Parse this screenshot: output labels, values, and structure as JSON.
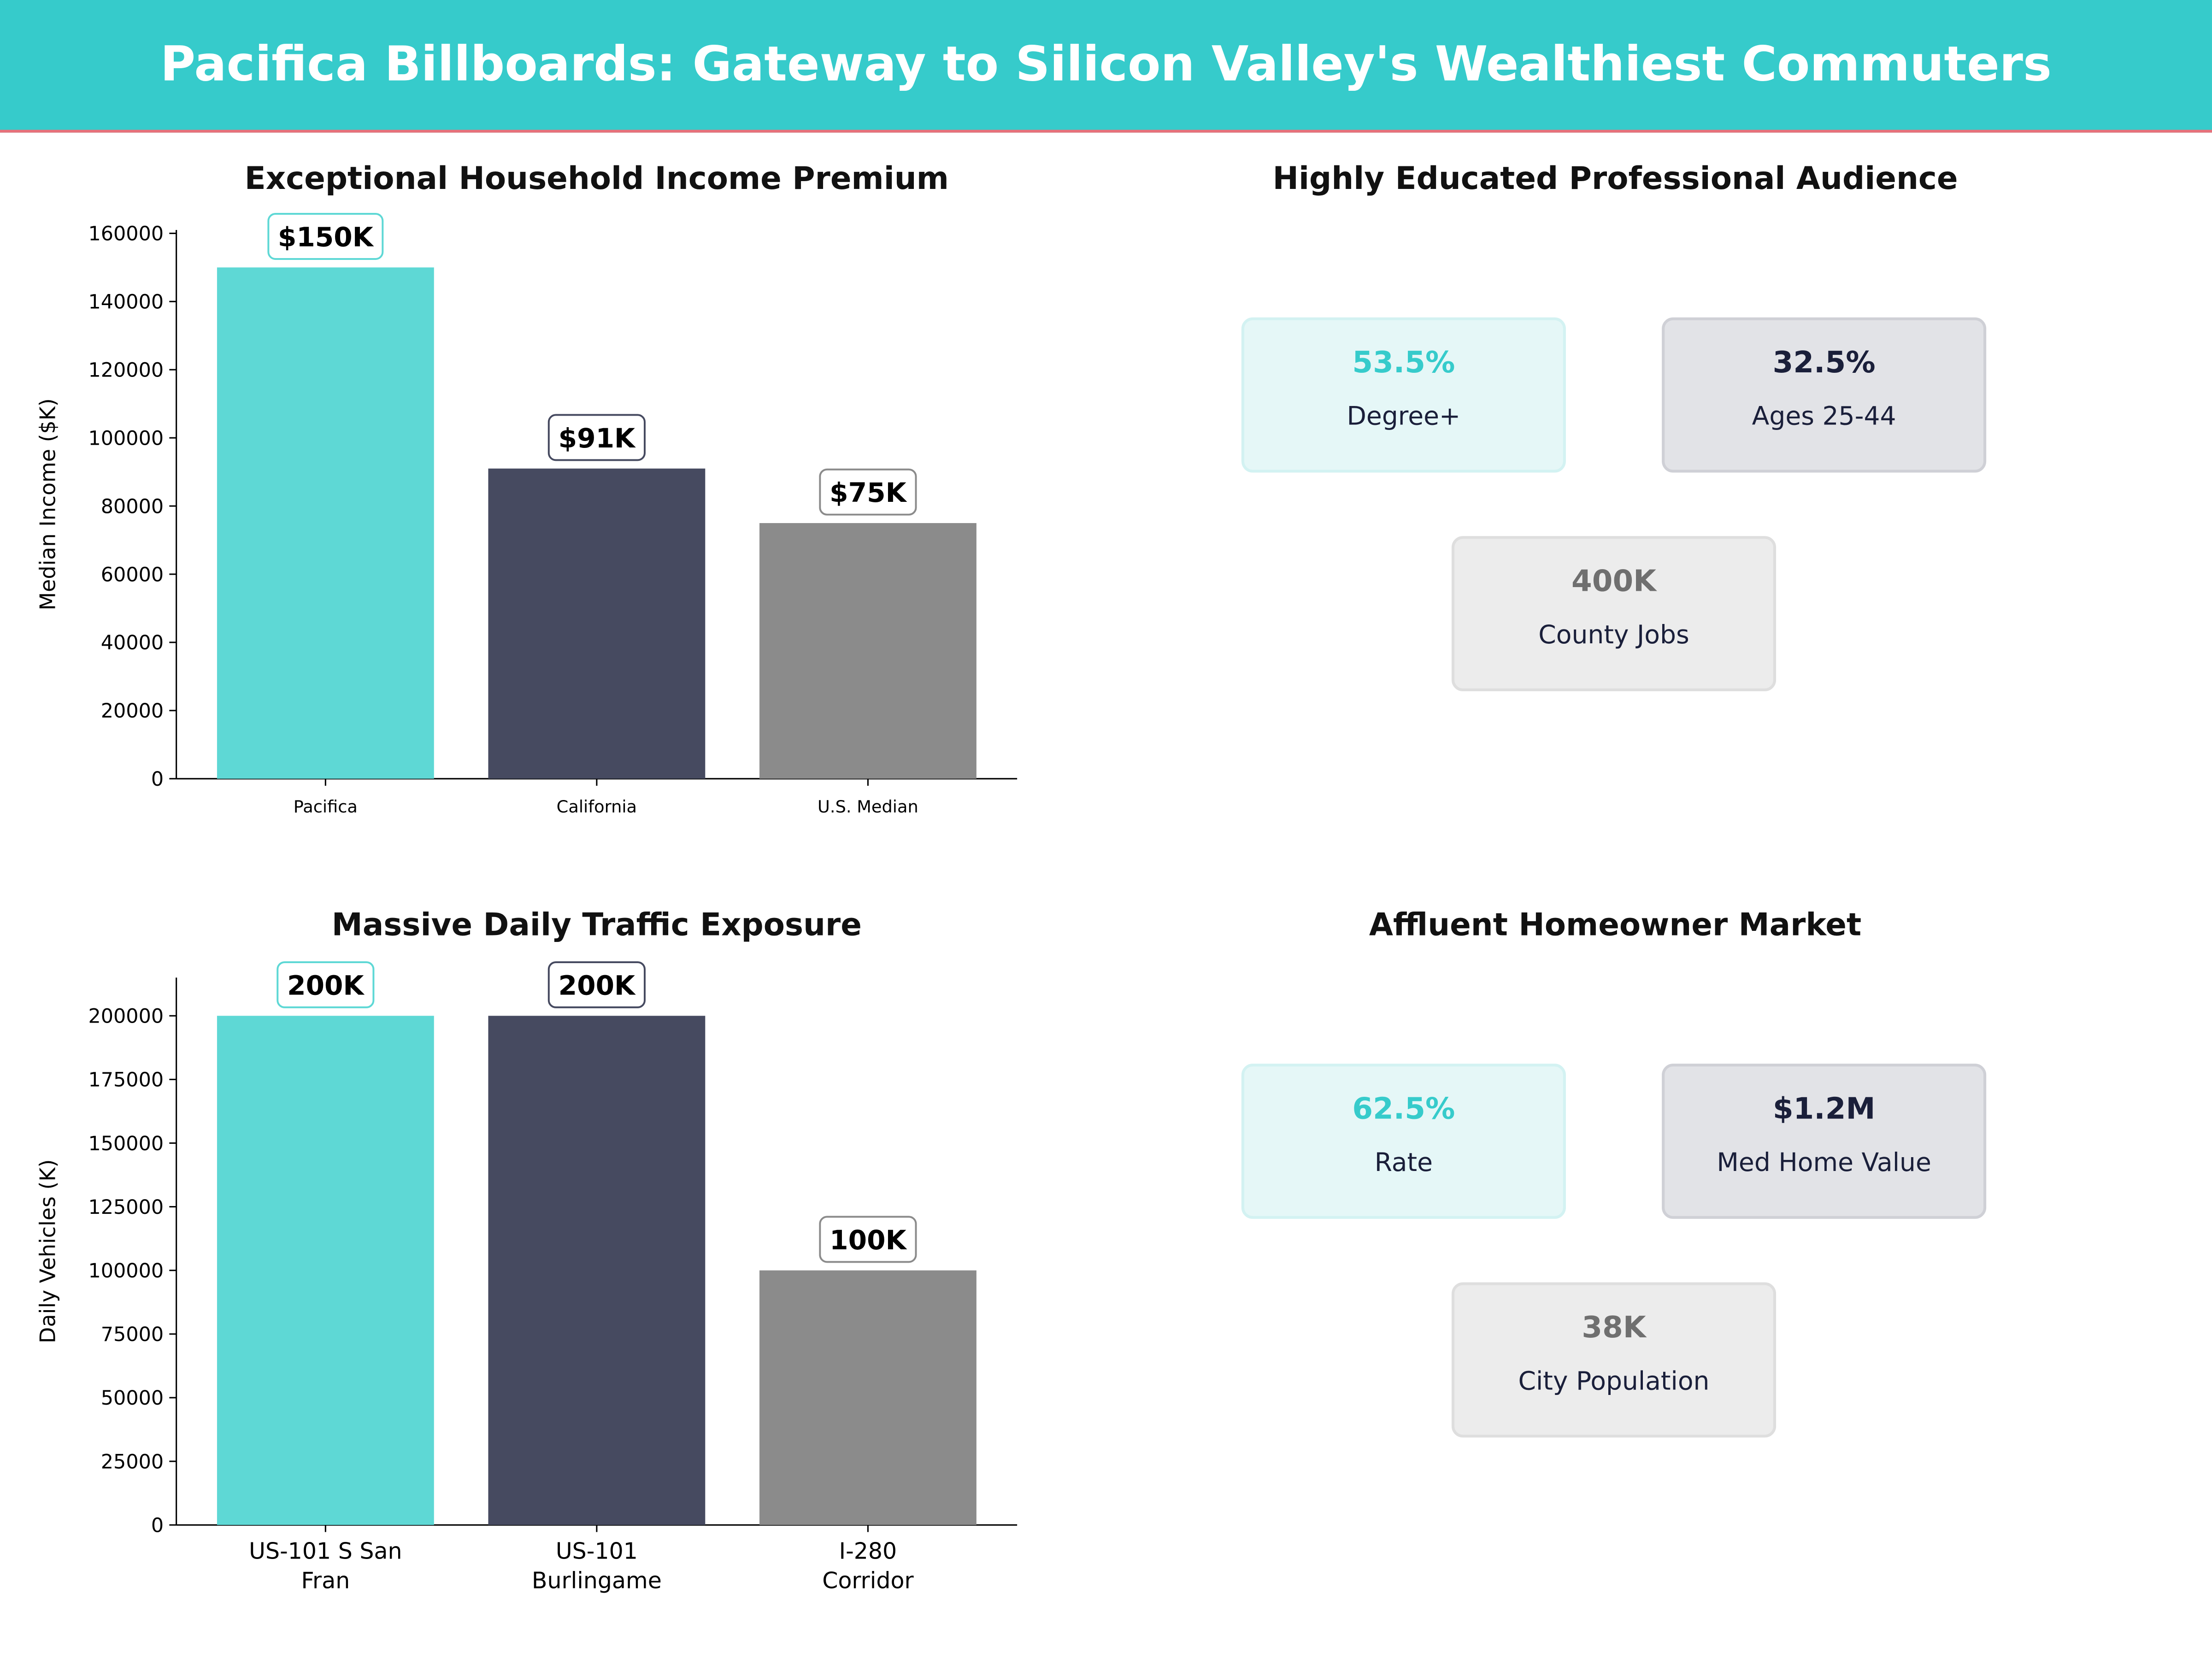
{
  "header": {
    "title": "Pacifica Billboards: Gateway to Silicon Valley's Wealthiest Commuters"
  },
  "colors": {
    "teal": "#5ed8d5",
    "dark": "#464a60",
    "gray": "#8b8b8b",
    "header": "#36cbcb",
    "accent_line": "#e8707a"
  },
  "chart_data": [
    {
      "type": "bar",
      "title": "Exceptional Household Income Premium",
      "ylabel": "Median Income ($K)",
      "xlabel": "",
      "categories": [
        "Pacifica",
        "California",
        "U.S. Median"
      ],
      "values": [
        150000,
        91000,
        75000
      ],
      "data_labels": [
        "$150K",
        "$91K",
        "$75K"
      ],
      "bar_colors": [
        "#5ed8d5",
        "#464a60",
        "#8b8b8b"
      ],
      "yticks": [
        "0",
        "20000",
        "40000",
        "60000",
        "80000",
        "100000",
        "120000",
        "140000",
        "160000"
      ],
      "ylim": [
        0,
        161000
      ],
      "grid": false
    },
    {
      "type": "bar",
      "title": "Massive Daily Traffic Exposure",
      "ylabel": "Daily Vehicles (K)",
      "xlabel": "",
      "categories": [
        "US-101 S San\nFran",
        "US-101\nBurlingame",
        "I-280\nCorridor"
      ],
      "values": [
        200000,
        200000,
        100000
      ],
      "data_labels": [
        "200K",
        "200K",
        "100K"
      ],
      "bar_colors": [
        "#5ed8d5",
        "#464a60",
        "#8b8b8b"
      ],
      "yticks": [
        "0",
        "25000",
        "50000",
        "75000",
        "100000",
        "125000",
        "150000",
        "175000",
        "200000"
      ],
      "ylim": [
        0,
        215000
      ],
      "grid": false
    }
  ],
  "panels": {
    "education": {
      "title": "Highly Educated Professional Audience",
      "cards": [
        {
          "value": "53.5%",
          "label": "Degree+"
        },
        {
          "value": "32.5%",
          "label": "Ages 25-44"
        },
        {
          "value": "400K",
          "label": "County Jobs"
        }
      ]
    },
    "homeowner": {
      "title": "Affluent Homeowner Market",
      "cards": [
        {
          "value": "62.5%",
          "label": "Rate"
        },
        {
          "value": "$1.2M",
          "label": "Med Home Value"
        },
        {
          "value": "38K",
          "label": "City Population"
        }
      ]
    }
  }
}
